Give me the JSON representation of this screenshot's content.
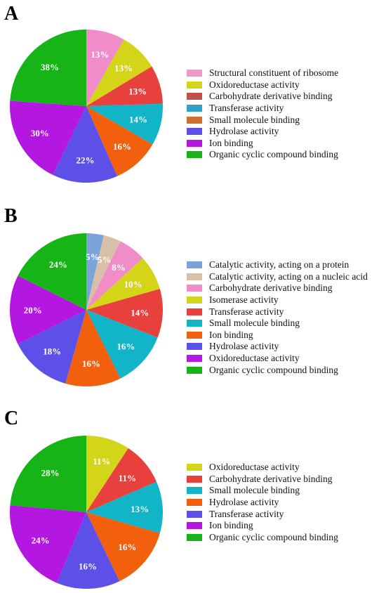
{
  "chart_data": [
    {
      "panel": "A",
      "type": "pie",
      "categories": [
        "Structural constituent of ribosome",
        "Oxidoreductase activity",
        "Carbohydrate derivative binding",
        "Transferase activity",
        "Small molecule binding",
        "Hydrolase activity",
        "Ion binding",
        "Organic cyclic compound binding"
      ],
      "slices": [
        {
          "label": "",
          "value": 13,
          "text": "13%",
          "color": "#F08CC8"
        },
        {
          "label": "",
          "value": 13,
          "text": "13%",
          "color": "#D4D418"
        },
        {
          "label": "",
          "value": 13,
          "text": "13%",
          "color": "#E8403C"
        },
        {
          "label": "",
          "value": 14,
          "text": "14%",
          "color": "#12B4C8"
        },
        {
          "label": "",
          "value": 16,
          "text": "16%",
          "color": "#F2600E"
        },
        {
          "label": "",
          "value": 22,
          "text": "22%",
          "color": "#5C50E8"
        },
        {
          "label": "",
          "value": 30,
          "text": "30%",
          "color": "#B418E0"
        },
        {
          "label": "",
          "value": 38,
          "text": "38%",
          "color": "#16B416"
        }
      ],
      "legend": [
        {
          "label": "Structural constituent of ribosome",
          "color": "#F098C8"
        },
        {
          "label": "Oxidoreductase activity",
          "color": "#D4D418"
        },
        {
          "label": "Carbohydrate derivative binding",
          "color": "#C0504D"
        },
        {
          "label": "Transferase activity",
          "color": "#30A0C8"
        },
        {
          "label": "Small molecule binding",
          "color": "#D07030"
        },
        {
          "label": "Hydrolase activity",
          "color": "#5C50E8"
        },
        {
          "label": "Ion binding",
          "color": "#B418E0"
        },
        {
          "label": "Organic cyclic compound binding",
          "color": "#16B416"
        }
      ]
    },
    {
      "panel": "B",
      "type": "pie",
      "categories": [
        "Catalytic activity, acting on a protein",
        "Catalytic activity, acting on a nucleic acid",
        "Carbohydrate derivative binding",
        "Isomerase activity",
        "Transferase activity",
        "Small molecule binding",
        "Ion binding",
        "Hydrolase activity",
        "Oxidoreductase activity",
        "Organic cyclic compound binding"
      ],
      "slices": [
        {
          "label": "",
          "value": 5,
          "text": "5%",
          "color": "#7AA4D8"
        },
        {
          "label": "",
          "value": 5,
          "text": "5%",
          "color": "#D8C0A8"
        },
        {
          "label": "",
          "value": 8,
          "text": "8%",
          "color": "#F08CC8"
        },
        {
          "label": "",
          "value": 10,
          "text": "10%",
          "color": "#D4D418"
        },
        {
          "label": "",
          "value": 14,
          "text": "14%",
          "color": "#E8403C"
        },
        {
          "label": "",
          "value": 16,
          "text": "16%",
          "color": "#12B4C8"
        },
        {
          "label": "",
          "value": 16,
          "text": "16%",
          "color": "#F2600E"
        },
        {
          "label": "",
          "value": 18,
          "text": "18%",
          "color": "#5C50E8"
        },
        {
          "label": "",
          "value": 20,
          "text": "20%",
          "color": "#B418E0"
        },
        {
          "label": "",
          "value": 24,
          "text": "24%",
          "color": "#16B416"
        }
      ],
      "legend": [
        {
          "label": "Catalytic activity, acting on a protein",
          "color": "#7AA4D8"
        },
        {
          "label": "Catalytic activity, acting on a nucleic acid",
          "color": "#D8C0A8"
        },
        {
          "label": "Carbohydrate derivative binding",
          "color": "#F08CC8"
        },
        {
          "label": "Isomerase activity",
          "color": "#D4D418"
        },
        {
          "label": "Transferase activity",
          "color": "#E8403C"
        },
        {
          "label": "Small molecule binding",
          "color": "#12B4C8"
        },
        {
          "label": "Ion binding",
          "color": "#F2600E"
        },
        {
          "label": "Hydrolase activity",
          "color": "#5C50E8"
        },
        {
          "label": "Oxidoreductase activity",
          "color": "#B418E0"
        },
        {
          "label": "Organic cyclic compound binding",
          "color": "#16B416"
        }
      ]
    },
    {
      "panel": "C",
      "type": "pie",
      "categories": [
        "Oxidoreductase activity",
        "Carbohydrate derivative binding",
        "Small molecule binding",
        "Hydrolase activity",
        "Transferase activity",
        "Ion binding",
        "Organic cyclic compound binding"
      ],
      "slices": [
        {
          "label": "",
          "value": 11,
          "text": "11%",
          "color": "#D4D418"
        },
        {
          "label": "",
          "value": 11,
          "text": "11%",
          "color": "#E8403C"
        },
        {
          "label": "",
          "value": 13,
          "text": "13%",
          "color": "#12B4C8"
        },
        {
          "label": "",
          "value": 16,
          "text": "16%",
          "color": "#F2600E"
        },
        {
          "label": "",
          "value": 16,
          "text": "16%",
          "color": "#5C50E8"
        },
        {
          "label": "",
          "value": 24,
          "text": "24%",
          "color": "#B418E0"
        },
        {
          "label": "",
          "value": 28,
          "text": "28%",
          "color": "#16B416"
        }
      ],
      "legend": [
        {
          "label": "Oxidoreductase activity",
          "color": "#D4D418"
        },
        {
          "label": "Carbohydrate derivative binding",
          "color": "#E8403C"
        },
        {
          "label": "Small molecule binding",
          "color": "#12B4C8"
        },
        {
          "label": "Hydrolase activity",
          "color": "#F2600E"
        },
        {
          "label": "Transferase activity",
          "color": "#5C50E8"
        },
        {
          "label": "Ion binding",
          "color": "#B418E0"
        },
        {
          "label": "Organic cyclic compound binding",
          "color": "#16B416"
        }
      ]
    }
  ]
}
